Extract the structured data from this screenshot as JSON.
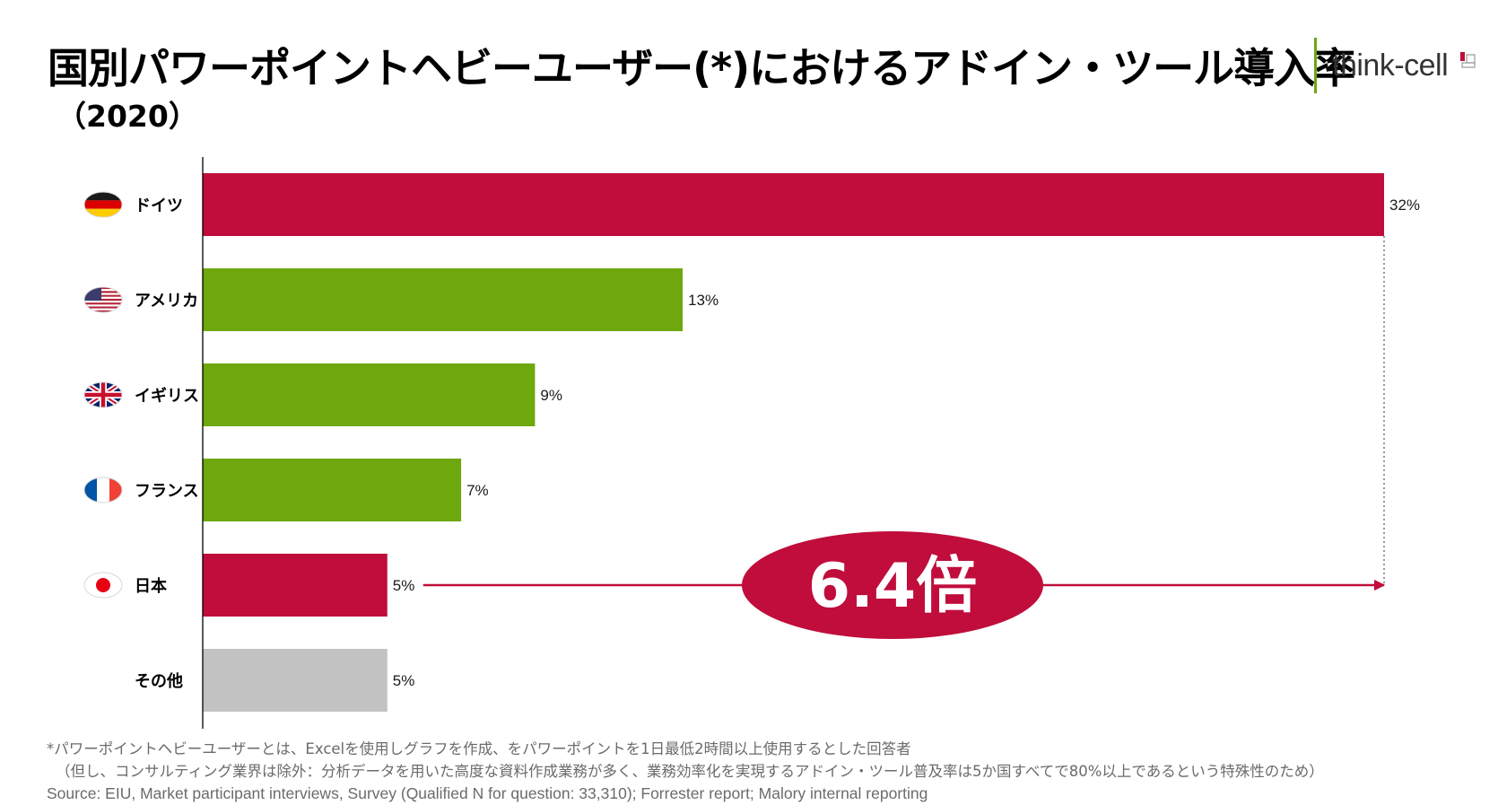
{
  "title": "国別パワーポイントヘビーユーザー(*)におけるアドイン・ツール導入率",
  "subtitle": "（2020）",
  "logo": {
    "text": "think-cell",
    "accent": "#6ea70e",
    "mark_color": "#c00d3b",
    "icon": "think-cell-logo-icon"
  },
  "chart_data": {
    "type": "bar",
    "orientation": "horizontal",
    "categories": [
      "ドイツ",
      "アメリカ",
      "イギリス",
      "フランス",
      "日本",
      "その他"
    ],
    "values": [
      32,
      13,
      9,
      7,
      5,
      5
    ],
    "value_labels": [
      "32%",
      "13%",
      "9%",
      "7%",
      "5%",
      "5%"
    ],
    "flags": [
      "germany-flag-icon",
      "usa-flag-icon",
      "uk-flag-icon",
      "france-flag-icon",
      "japan-flag-icon",
      ""
    ],
    "bar_colors": [
      "#c00d3b",
      "#6ea70e",
      "#6ea70e",
      "#6ea70e",
      "#c00d3b",
      "#c2c2c2"
    ],
    "xlim": [
      0,
      32
    ],
    "grid": false,
    "annotation": {
      "text": "6.4倍",
      "from": "日本",
      "to": "ドイツ",
      "color": "#c00d3b"
    }
  },
  "footnotes": {
    "note1": "*パワーポイントヘビーユーザーとは、Excelを使用しグラフを作成、をパワーポイントを1日最低2時間以上使用するとした回答者",
    "note2": "（但し、コンサルティング業界は除外：分析データを用いた高度な資料作成業務が多く、業務効率化を実現するアドイン・ツール普及率は5か国すべてで80%以上であるという特殊性のため）",
    "source": "Source: EIU, Market participant interviews, Survey (Qualified N for question: 33,310); Forrester report; Malory internal reporting"
  }
}
